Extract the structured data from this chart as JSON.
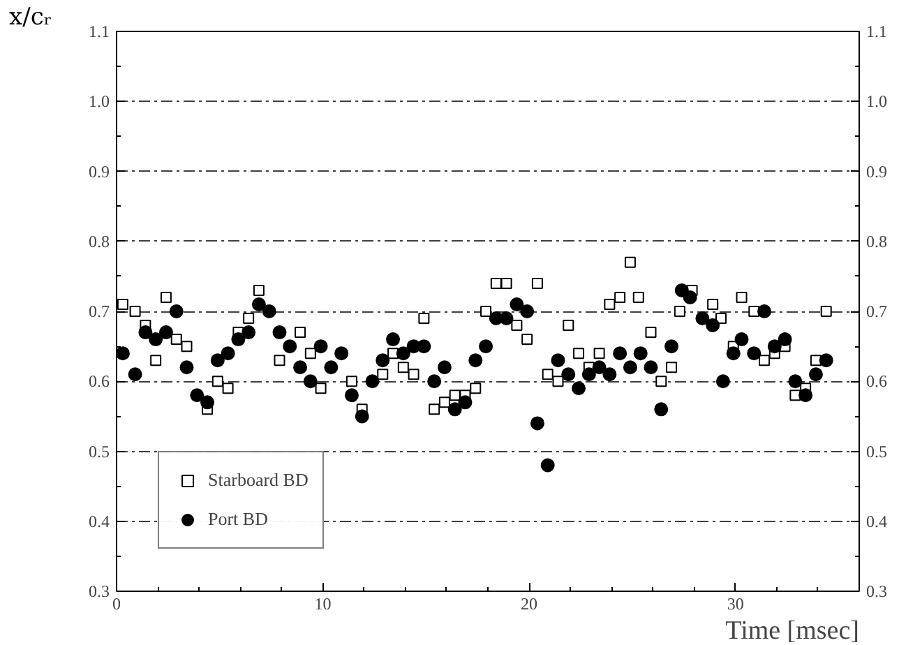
{
  "chart_data": {
    "type": "scatter",
    "ylabel": "x/cᵣ",
    "xlabel": "Time [msec]",
    "xlim": [
      0,
      36
    ],
    "ylim": [
      0.3,
      1.1
    ],
    "xticks": [
      0,
      10,
      20,
      30
    ],
    "yticks": [
      0.3,
      0.4,
      0.5,
      0.6,
      0.7,
      0.8,
      0.9,
      {
        "value": 1.0,
        "label": "1.0"
      },
      1.1
    ],
    "y2lim": [
      0.3,
      1.1
    ],
    "y2ticks": [
      0.3,
      0.4,
      0.5,
      0.6,
      0.7,
      0.8,
      0.9,
      {
        "value": 1.0,
        "label": "1.0"
      },
      1.1
    ],
    "grid": "y",
    "legend": "bottom left",
    "series": [
      {
        "name": "Starboard BD",
        "color": "#000000",
        "marker": "square",
        "x": [
          0.3,
          0.9,
          1.4,
          1.9,
          2.4,
          2.9,
          3.4,
          4.4,
          4.9,
          5.4,
          5.9,
          6.4,
          6.9,
          7.9,
          8.9,
          9.4,
          9.9,
          11.4,
          11.9,
          12.9,
          13.4,
          13.9,
          14.4,
          14.9,
          15.4,
          15.9,
          16.4,
          16.9,
          17.4,
          17.9,
          18.4,
          18.9,
          19.4,
          19.9,
          20.4,
          20.9,
          21.4,
          21.9,
          22.4,
          22.9,
          23.4,
          23.9,
          24.4,
          24.9,
          25.3,
          25.9,
          26.4,
          26.9,
          27.3,
          27.9,
          28.9,
          29.3,
          29.9,
          30.3,
          30.9,
          31.4,
          31.9,
          32.4,
          32.9,
          33.4,
          33.9,
          34.4
        ],
        "values": [
          0.71,
          0.7,
          0.68,
          0.63,
          0.72,
          0.66,
          0.65,
          0.56,
          0.6,
          0.59,
          0.67,
          0.69,
          0.73,
          0.63,
          0.67,
          0.64,
          0.59,
          0.6,
          0.56,
          0.61,
          0.64,
          0.62,
          0.61,
          0.69,
          0.56,
          0.57,
          0.58,
          0.58,
          0.59,
          0.7,
          0.74,
          0.74,
          0.68,
          0.66,
          0.74,
          0.61,
          0.6,
          0.68,
          0.64,
          0.62,
          0.64,
          0.71,
          0.72,
          0.77,
          0.72,
          0.67,
          0.6,
          0.62,
          0.7,
          0.73,
          0.71,
          0.69,
          0.65,
          0.72,
          0.7,
          0.63,
          0.64,
          0.65,
          0.58,
          0.59,
          0.63,
          0.7
        ]
      },
      {
        "name": "Port BD",
        "color": "#000000",
        "marker": "circle",
        "x": [
          0.3,
          0.9,
          1.4,
          1.9,
          2.4,
          2.9,
          3.4,
          3.9,
          4.4,
          4.9,
          5.4,
          5.9,
          6.4,
          6.9,
          7.4,
          7.9,
          8.4,
          8.9,
          9.4,
          9.9,
          10.4,
          10.9,
          11.4,
          11.9,
          12.4,
          12.9,
          13.4,
          13.9,
          14.4,
          14.9,
          15.4,
          15.9,
          16.4,
          16.9,
          17.4,
          17.9,
          18.4,
          18.9,
          19.4,
          19.9,
          20.4,
          20.9,
          21.4,
          21.9,
          22.4,
          22.9,
          23.4,
          23.9,
          24.4,
          24.9,
          25.4,
          25.9,
          26.4,
          26.9,
          27.4,
          27.8,
          28.4,
          28.9,
          29.4,
          29.9,
          30.3,
          30.9,
          31.4,
          31.9,
          32.4,
          32.9,
          33.4,
          33.9,
          34.4
        ],
        "values": [
          0.64,
          0.61,
          0.67,
          0.66,
          0.67,
          0.7,
          0.62,
          0.58,
          0.57,
          0.63,
          0.64,
          0.66,
          0.67,
          0.71,
          0.7,
          0.67,
          0.65,
          0.62,
          0.6,
          0.65,
          0.62,
          0.64,
          0.58,
          0.55,
          0.6,
          0.63,
          0.66,
          0.64,
          0.65,
          0.65,
          0.6,
          0.62,
          0.56,
          0.57,
          0.63,
          0.65,
          0.69,
          0.69,
          0.71,
          0.7,
          0.54,
          0.48,
          0.63,
          0.61,
          0.59,
          0.61,
          0.62,
          0.61,
          0.64,
          0.62,
          0.64,
          0.62,
          0.56,
          0.65,
          0.73,
          0.72,
          0.69,
          0.68,
          0.6,
          0.64,
          0.66,
          0.64,
          0.7,
          0.65,
          0.66,
          0.6,
          0.58,
          0.61,
          0.63
        ]
      }
    ]
  }
}
